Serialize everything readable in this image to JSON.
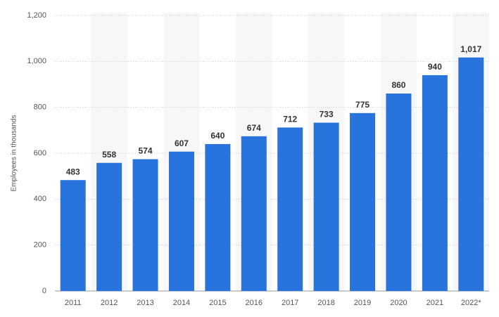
{
  "chart_data": {
    "type": "bar",
    "y_axis_label": "Employees in thousands",
    "categories": [
      "2011",
      "2012",
      "2013",
      "2014",
      "2015",
      "2016",
      "2017",
      "2018",
      "2019",
      "2020",
      "2021",
      "2022*"
    ],
    "values": [
      483,
      558,
      574,
      607,
      640,
      674,
      712,
      733,
      775,
      860,
      940,
      1017
    ],
    "value_labels": [
      "483",
      "558",
      "574",
      "607",
      "640",
      "674",
      "712",
      "733",
      "775",
      "860",
      "940",
      "1,017"
    ],
    "color": "#2873dc",
    "ylim": [
      0,
      1200
    ],
    "yticks": [
      0,
      200,
      400,
      600,
      800,
      {
        "value": 1000,
        "label": "1,000"
      },
      {
        "value": 1200,
        "label": "1,200"
      }
    ],
    "grid": true
  }
}
